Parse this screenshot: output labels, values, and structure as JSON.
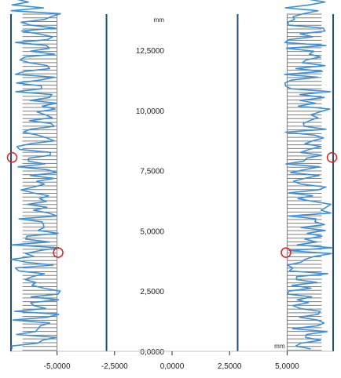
{
  "chart_data": {
    "type": "line",
    "y_unit": "mm",
    "x_unit": "mm",
    "x_range": [
      -7.0,
      7.0
    ],
    "y_range": [
      0,
      14
    ],
    "x_ticks": [
      "-5,0000",
      "-2,5000",
      "0,0000",
      "2,5000",
      "5,0000"
    ],
    "x_tick_values": [
      -5.0,
      -2.5,
      0.0,
      2.5,
      5.0
    ],
    "y_ticks": [
      "0,0000",
      "2,5000",
      "5,0000",
      "7,5000",
      "10,0000",
      "12,5000"
    ],
    "y_tick_values": [
      0.0,
      2.5,
      5.0,
      7.5,
      10.0,
      12.5
    ],
    "boundary_lines_x": [
      -7.0,
      -2.85,
      2.85,
      7.0
    ],
    "hatch_bands": [
      {
        "name": "",
        "x_from": -5.0,
        "x_to": -6.5
      },
      {
        "name": "",
        "x_from": 5.0,
        "x_to": 6.5
      }
    ],
    "series": [
      {
        "side": "left",
        "baseline_x": -5.0,
        "min_x": -7.0,
        "max_x": -4.85,
        "y_start": 0.1,
        "y_end": 14.8,
        "y_step": 0.12,
        "markers": [
          {
            "x": -6.95,
            "y": 8.05
          },
          {
            "x": -4.95,
            "y": 4.1
          }
        ]
      },
      {
        "side": "right",
        "baseline_x": 5.0,
        "min_x": 4.85,
        "max_x": 7.0,
        "y_start": 0.1,
        "y_end": 14.8,
        "y_step": 0.12,
        "markers": [
          {
            "x": 6.95,
            "y": 8.05
          },
          {
            "x": 4.95,
            "y": 4.1
          }
        ]
      }
    ],
    "colors": {
      "profile": "#3a8fde",
      "boundary": "#1f4e79",
      "hatch": "#7f7f7f",
      "marker": "#e02020",
      "axis": "#222222"
    }
  }
}
